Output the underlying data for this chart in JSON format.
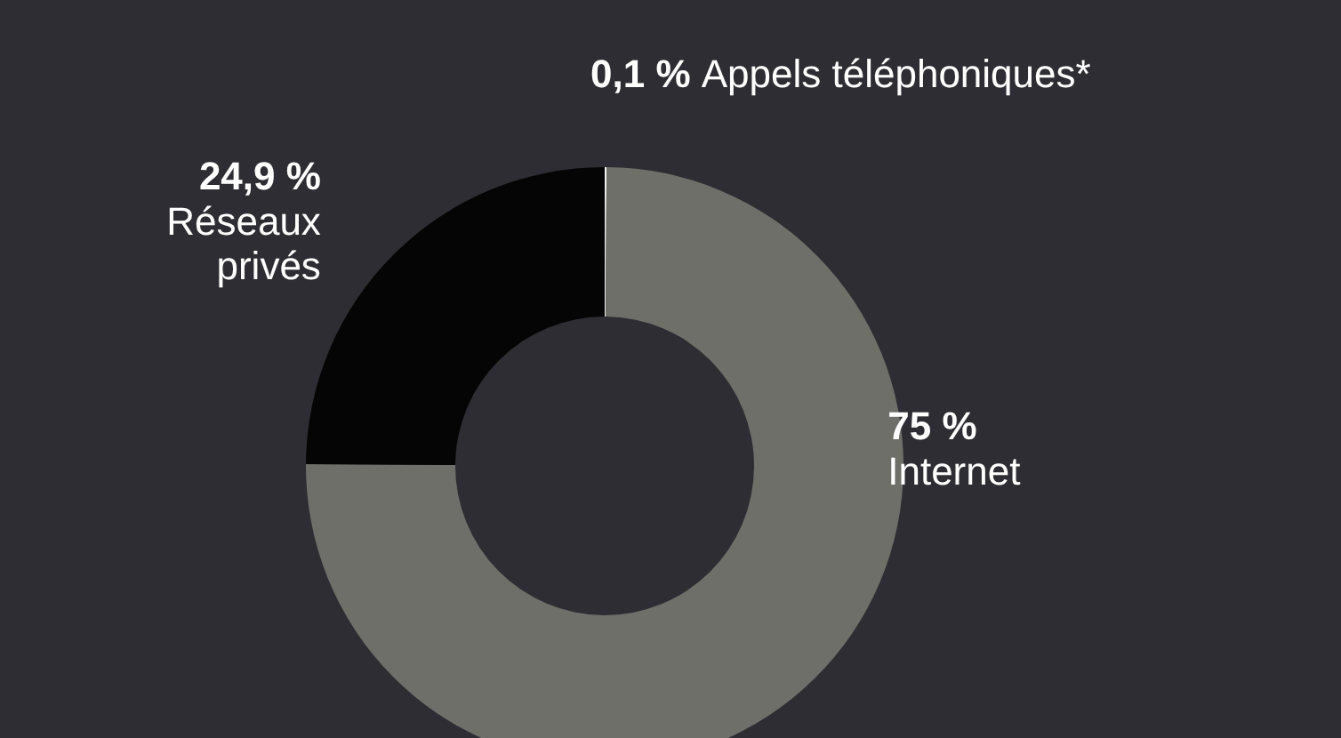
{
  "chart_data": {
    "type": "donut",
    "categories": [
      "Appels téléphoniques*",
      "Internet",
      "Réseaux privés"
    ],
    "values": [
      0.1,
      75,
      24.9
    ],
    "colors": [
      "#f2f2f2",
      "#6f6f69",
      "#050505"
    ],
    "value_labels": [
      "0,1 %",
      "75 %",
      "24,9 %"
    ],
    "legend": false
  }
}
